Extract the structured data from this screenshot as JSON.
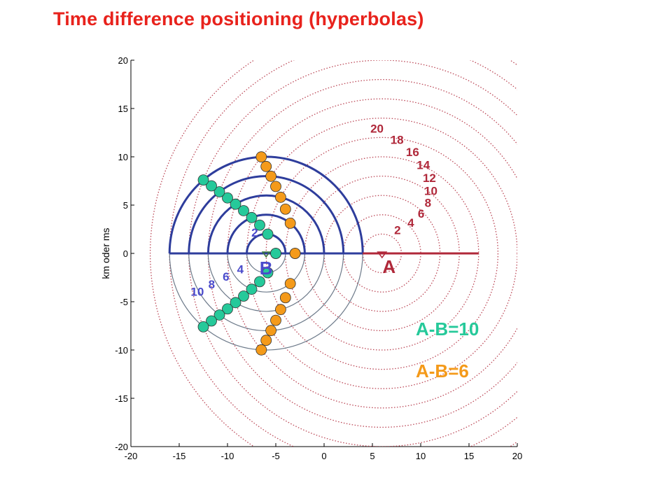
{
  "title": "Time difference positioning (hyperbolas)",
  "axes": {
    "ylabel": "km  oder  ms",
    "xlim": [
      -20,
      20
    ],
    "ylim": [
      -20,
      20
    ],
    "xticks": [
      -20,
      -15,
      -10,
      -5,
      0,
      5,
      10,
      15,
      20
    ],
    "yticks": [
      20,
      15,
      10,
      5,
      0,
      -5,
      -10,
      -15,
      -20
    ]
  },
  "stations": {
    "A": {
      "label": "A",
      "x": 6
    },
    "B": {
      "label": "B",
      "x": -6
    }
  },
  "rings_A": {
    "radii": [
      2,
      4,
      6,
      8,
      10,
      12,
      14,
      16,
      18,
      20,
      22,
      24
    ],
    "labels": [
      {
        "text": "2",
        "r": 2
      },
      {
        "text": "4",
        "r": 4
      },
      {
        "text": "6",
        "r": 6
      },
      {
        "text": "8",
        "r": 8
      },
      {
        "text": "10",
        "r": 10
      },
      {
        "text": "12",
        "r": 12
      },
      {
        "text": "14",
        "r": 14
      },
      {
        "text": "16",
        "r": 16
      },
      {
        "text": "18",
        "r": 18
      },
      {
        "text": "20",
        "r": 20
      }
    ]
  },
  "rings_B": {
    "radii": [
      2,
      4,
      6,
      8,
      10
    ],
    "labels": [
      {
        "text": "2",
        "r": 2
      },
      {
        "text": "4",
        "r": 4
      },
      {
        "text": "6",
        "r": 6
      },
      {
        "text": "8",
        "r": 8
      },
      {
        "text": "10",
        "r": 10
      }
    ]
  },
  "legend": {
    "green": "A-B=10",
    "orange": "A-B=6"
  },
  "colors": {
    "title": "#e8221c",
    "ringA": "#b0283a",
    "ringB": "#2e3d9c",
    "ringB_lower": "#6d7a8a",
    "labelB": "#4a4acb",
    "green": "#26c99a",
    "orange": "#f49a1a",
    "marker": "#3a7a3a"
  }
}
